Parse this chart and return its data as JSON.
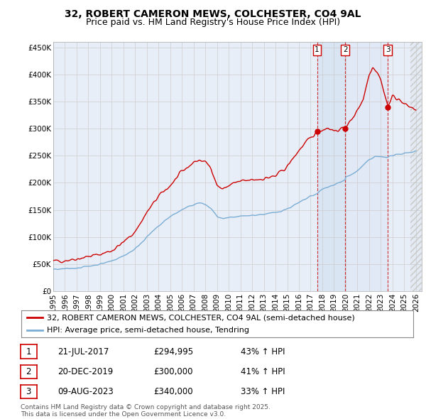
{
  "title": "32, ROBERT CAMERON MEWS, COLCHESTER, CO4 9AL",
  "subtitle": "Price paid vs. HM Land Registry's House Price Index (HPI)",
  "ytick_labels": [
    "£0",
    "£50K",
    "£100K",
    "£150K",
    "£200K",
    "£250K",
    "£300K",
    "£350K",
    "£400K",
    "£450K"
  ],
  "yticks": [
    0,
    50000,
    100000,
    150000,
    200000,
    250000,
    300000,
    350000,
    400000,
    450000
  ],
  "xmin": 1995.0,
  "xmax": 2026.5,
  "ymin": 0,
  "ymax": 460000,
  "red_color": "#cc0000",
  "blue_color": "#7aadd4",
  "grid_color": "#cccccc",
  "bg_color": "#ffffff",
  "plot_bg_color": "#e8eef8",
  "shade_color": "#d0dff0",
  "hatch_color": "#c8c8c8",
  "sale_dates": [
    2017.55,
    2019.97,
    2023.61
  ],
  "sale_prices": [
    294995,
    300000,
    340000
  ],
  "sale_labels": [
    "1",
    "2",
    "3"
  ],
  "vline_color": "#cc0000",
  "future_start": 2025.5,
  "legend_label_red": "32, ROBERT CAMERON MEWS, COLCHESTER, CO4 9AL (semi-detached house)",
  "legend_label_blue": "HPI: Average price, semi-detached house, Tendring",
  "table_data": [
    [
      "1",
      "21-JUL-2017",
      "£294,995",
      "43% ↑ HPI"
    ],
    [
      "2",
      "20-DEC-2019",
      "£300,000",
      "41% ↑ HPI"
    ],
    [
      "3",
      "09-AUG-2023",
      "£340,000",
      "33% ↑ HPI"
    ]
  ],
  "footnote": "Contains HM Land Registry data © Crown copyright and database right 2025.\nThis data is licensed under the Open Government Licence v3.0.",
  "title_fontsize": 10,
  "subtitle_fontsize": 9,
  "tick_fontsize": 7.5,
  "legend_fontsize": 8,
  "table_fontsize": 8.5,
  "footnote_fontsize": 6.5
}
